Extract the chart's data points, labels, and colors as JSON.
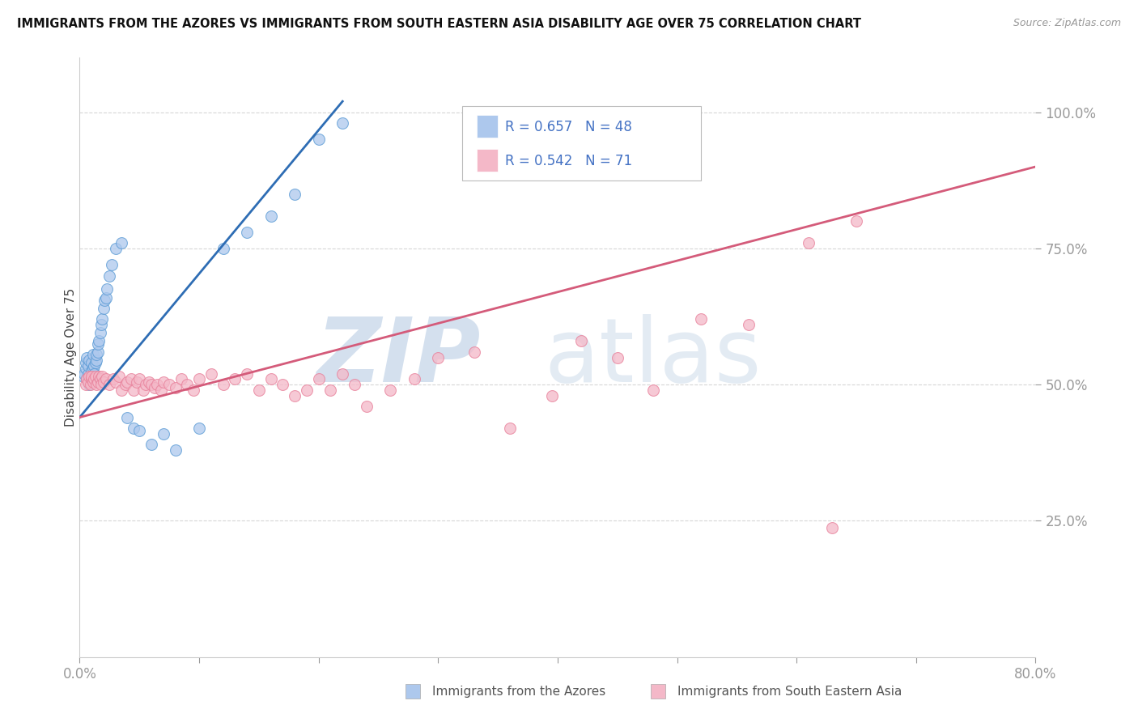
{
  "title": "IMMIGRANTS FROM THE AZORES VS IMMIGRANTS FROM SOUTH EASTERN ASIA DISABILITY AGE OVER 75 CORRELATION CHART",
  "source": "Source: ZipAtlas.com",
  "ylabel": "Disability Age Over 75",
  "xlabel_azores": "Immigrants from the Azores",
  "xlabel_sea": "Immigrants from South Eastern Asia",
  "xlim": [
    0.0,
    0.8
  ],
  "ylim": [
    0.0,
    1.1
  ],
  "yticks": [
    0.25,
    0.5,
    0.75,
    1.0
  ],
  "ytick_labels": [
    "25.0%",
    "50.0%",
    "75.0%",
    "100.0%"
  ],
  "xticks": [
    0.0,
    0.1,
    0.2,
    0.3,
    0.4,
    0.5,
    0.6,
    0.7,
    0.8
  ],
  "xtick_labels": [
    "0.0%",
    "",
    "",
    "",
    "",
    "",
    "",
    "",
    "80.0%"
  ],
  "R_azores": 0.657,
  "N_azores": 48,
  "R_sea": 0.542,
  "N_sea": 71,
  "color_azores": "#adc8ed",
  "color_azores_dark": "#5b9bd5",
  "color_azores_line": "#2e6db4",
  "color_sea": "#f4b8c8",
  "color_sea_dark": "#e8809a",
  "color_sea_line": "#d45b7a",
  "color_text_blue": "#4472c4",
  "background_color": "#ffffff",
  "grid_color": "#cccccc",
  "azores_x": [
    0.003,
    0.004,
    0.005,
    0.005,
    0.006,
    0.006,
    0.007,
    0.007,
    0.008,
    0.008,
    0.009,
    0.01,
    0.01,
    0.01,
    0.011,
    0.011,
    0.012,
    0.012,
    0.013,
    0.014,
    0.014,
    0.015,
    0.015,
    0.016,
    0.017,
    0.018,
    0.019,
    0.02,
    0.021,
    0.022,
    0.023,
    0.025,
    0.027,
    0.03,
    0.035,
    0.04,
    0.045,
    0.05,
    0.06,
    0.07,
    0.08,
    0.1,
    0.12,
    0.14,
    0.16,
    0.18,
    0.2,
    0.22
  ],
  "azores_y": [
    0.515,
    0.52,
    0.53,
    0.54,
    0.51,
    0.55,
    0.52,
    0.535,
    0.5,
    0.545,
    0.515,
    0.51,
    0.525,
    0.54,
    0.53,
    0.555,
    0.535,
    0.52,
    0.54,
    0.545,
    0.555,
    0.56,
    0.575,
    0.58,
    0.595,
    0.61,
    0.62,
    0.64,
    0.655,
    0.66,
    0.675,
    0.7,
    0.72,
    0.75,
    0.76,
    0.44,
    0.42,
    0.415,
    0.39,
    0.41,
    0.38,
    0.42,
    0.75,
    0.78,
    0.81,
    0.85,
    0.95,
    0.98
  ],
  "sea_x": [
    0.005,
    0.006,
    0.007,
    0.008,
    0.009,
    0.01,
    0.01,
    0.011,
    0.012,
    0.013,
    0.014,
    0.015,
    0.016,
    0.017,
    0.018,
    0.019,
    0.02,
    0.022,
    0.025,
    0.028,
    0.03,
    0.033,
    0.035,
    0.038,
    0.04,
    0.043,
    0.045,
    0.048,
    0.05,
    0.053,
    0.055,
    0.058,
    0.06,
    0.063,
    0.065,
    0.068,
    0.07,
    0.075,
    0.08,
    0.085,
    0.09,
    0.095,
    0.1,
    0.11,
    0.12,
    0.13,
    0.14,
    0.15,
    0.16,
    0.17,
    0.18,
    0.19,
    0.2,
    0.21,
    0.22,
    0.23,
    0.24,
    0.26,
    0.28,
    0.3,
    0.33,
    0.36,
    0.395,
    0.42,
    0.45,
    0.48,
    0.52,
    0.56,
    0.61,
    0.63,
    0.65
  ],
  "sea_y": [
    0.5,
    0.51,
    0.505,
    0.515,
    0.5,
    0.51,
    0.515,
    0.505,
    0.51,
    0.515,
    0.5,
    0.505,
    0.515,
    0.51,
    0.5,
    0.515,
    0.505,
    0.51,
    0.5,
    0.51,
    0.505,
    0.515,
    0.49,
    0.5,
    0.505,
    0.51,
    0.49,
    0.505,
    0.51,
    0.49,
    0.5,
    0.505,
    0.5,
    0.495,
    0.5,
    0.49,
    0.505,
    0.5,
    0.495,
    0.51,
    0.5,
    0.49,
    0.51,
    0.52,
    0.5,
    0.51,
    0.52,
    0.49,
    0.51,
    0.5,
    0.48,
    0.49,
    0.51,
    0.49,
    0.52,
    0.5,
    0.46,
    0.49,
    0.51,
    0.55,
    0.56,
    0.42,
    0.48,
    0.58,
    0.55,
    0.49,
    0.62,
    0.61,
    0.76,
    0.238,
    0.8
  ],
  "az_line_x0": 0.0,
  "az_line_x1": 0.22,
  "az_line_y0": 0.44,
  "az_line_y1": 1.02,
  "sea_line_x0": 0.0,
  "sea_line_x1": 0.8,
  "sea_line_y0": 0.44,
  "sea_line_y1": 0.9
}
